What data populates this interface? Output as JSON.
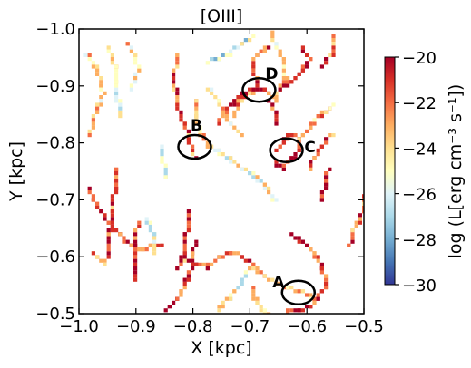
{
  "chart_data": {
    "type": "heatmap",
    "title": "[OIII]",
    "xlabel": "X [kpc]",
    "ylabel": "Y [kpc]",
    "xlim": [
      -1.0,
      -0.5
    ],
    "ylim": [
      -1.0,
      -0.5
    ],
    "xticks": [
      -1.0,
      -0.9,
      -0.8,
      -0.7,
      -0.6,
      -0.5
    ],
    "xtick_labels": [
      "−1.0",
      "−0.9",
      "−0.8",
      "−0.7",
      "−0.6",
      "−0.5"
    ],
    "yticks": [
      -0.5,
      -0.6,
      -0.7,
      -0.8,
      -0.9,
      -1.0
    ],
    "ytick_labels": [
      "−0.5",
      "−0.6",
      "−0.7",
      "−0.8",
      "−0.9",
      "−1.0"
    ],
    "colorbar": {
      "label": "log (L[erg cm⁻³ s⁻¹])",
      "range": [
        -30,
        -20
      ],
      "ticks": [
        -20,
        -22,
        -24,
        -26,
        -28,
        -30
      ],
      "tick_labels": [
        "−20",
        "−22",
        "−24",
        "−26",
        "−28",
        "−30"
      ],
      "colormap": [
        "#313695",
        "#4575b4",
        "#74add1",
        "#abd9e9",
        "#e0f3f8",
        "#ffffbf",
        "#fee090",
        "#fdae61",
        "#f46d43",
        "#d73027",
        "#a50026"
      ]
    },
    "annotations": [
      {
        "label": "A",
        "x": -0.615,
        "y": -0.537
      },
      {
        "label": "B",
        "x": -0.797,
        "y": -0.793
      },
      {
        "label": "C",
        "x": -0.636,
        "y": -0.787
      },
      {
        "label": "D",
        "x": -0.684,
        "y": -0.893
      }
    ],
    "filaments": [
      {
        "pts": [
          [
            -0.99,
            -0.96
          ],
          [
            -0.97,
            -0.93
          ],
          [
            -0.96,
            -0.89
          ],
          [
            -0.975,
            -0.85
          ],
          [
            -0.985,
            -0.82
          ]
        ],
        "v": -24
      },
      {
        "pts": [
          [
            -0.985,
            -0.72
          ],
          [
            -0.97,
            -0.69
          ],
          [
            -0.95,
            -0.66
          ],
          [
            -0.93,
            -0.64
          ],
          [
            -0.91,
            -0.62
          ]
        ],
        "v": -21
      },
      {
        "pts": [
          [
            -0.91,
            -0.62
          ],
          [
            -0.89,
            -0.615
          ],
          [
            -0.87,
            -0.625
          ],
          [
            -0.855,
            -0.62
          ]
        ],
        "v": -22
      },
      {
        "pts": [
          [
            -0.905,
            -0.565
          ],
          [
            -0.905,
            -0.62
          ],
          [
            -0.9,
            -0.66
          ]
        ],
        "v": -21
      },
      {
        "pts": [
          [
            -0.98,
            -0.61
          ],
          [
            -0.97,
            -0.6
          ],
          [
            -0.955,
            -0.59
          ]
        ],
        "v": -23
      },
      {
        "pts": [
          [
            -0.85,
            -0.51
          ],
          [
            -0.83,
            -0.53
          ],
          [
            -0.815,
            -0.56
          ],
          [
            -0.805,
            -0.59
          ],
          [
            -0.8,
            -0.63
          ]
        ],
        "v": -21
      },
      {
        "pts": [
          [
            -0.83,
            -0.58
          ],
          [
            -0.82,
            -0.61
          ],
          [
            -0.815,
            -0.64
          ],
          [
            -0.81,
            -0.68
          ]
        ],
        "v": -20.5
      },
      {
        "pts": [
          [
            -0.82,
            -0.6
          ],
          [
            -0.8,
            -0.59
          ],
          [
            -0.78,
            -0.585
          ],
          [
            -0.76,
            -0.6
          ],
          [
            -0.74,
            -0.61
          ],
          [
            -0.72,
            -0.605
          ],
          [
            -0.7,
            -0.59
          ]
        ],
        "v": -22
      },
      {
        "pts": [
          [
            -0.7,
            -0.59
          ],
          [
            -0.68,
            -0.57
          ],
          [
            -0.655,
            -0.555
          ],
          [
            -0.635,
            -0.55
          ],
          [
            -0.61,
            -0.54
          ],
          [
            -0.59,
            -0.53
          ]
        ],
        "v": -23
      },
      {
        "pts": [
          [
            -0.76,
            -0.51
          ],
          [
            -0.74,
            -0.53
          ],
          [
            -0.72,
            -0.555
          ],
          [
            -0.705,
            -0.58
          ]
        ],
        "v": -25
      },
      {
        "pts": [
          [
            -0.64,
            -0.505
          ],
          [
            -0.62,
            -0.51
          ],
          [
            -0.6,
            -0.515
          ],
          [
            -0.585,
            -0.53
          ],
          [
            -0.57,
            -0.55
          ],
          [
            -0.575,
            -0.58
          ],
          [
            -0.59,
            -0.61
          ],
          [
            -0.61,
            -0.63
          ],
          [
            -0.63,
            -0.64
          ]
        ],
        "v": -21
      },
      {
        "pts": [
          [
            -0.67,
            -0.5
          ],
          [
            -0.69,
            -0.52
          ],
          [
            -0.7,
            -0.55
          ]
        ],
        "v": -24
      },
      {
        "pts": [
          [
            -0.95,
            -0.6
          ],
          [
            -0.95,
            -0.64
          ],
          [
            -0.945,
            -0.68
          ],
          [
            -0.94,
            -0.72
          ],
          [
            -0.935,
            -0.76
          ]
        ],
        "v": -22
      },
      {
        "pts": [
          [
            -0.66,
            -0.7
          ],
          [
            -0.68,
            -0.73
          ],
          [
            -0.7,
            -0.75
          ],
          [
            -0.72,
            -0.76
          ],
          [
            -0.74,
            -0.775
          ],
          [
            -0.76,
            -0.79
          ],
          [
            -0.775,
            -0.8
          ]
        ],
        "v": -25
      },
      {
        "pts": [
          [
            -0.775,
            -0.8
          ],
          [
            -0.79,
            -0.82
          ],
          [
            -0.8,
            -0.85
          ],
          [
            -0.8,
            -0.88
          ]
        ],
        "v": -23
      },
      {
        "pts": [
          [
            -0.8,
            -0.78
          ],
          [
            -0.81,
            -0.81
          ],
          [
            -0.82,
            -0.84
          ],
          [
            -0.83,
            -0.87
          ],
          [
            -0.835,
            -0.9
          ],
          [
            -0.835,
            -0.93
          ],
          [
            -0.83,
            -0.96
          ]
        ],
        "v": -22
      },
      {
        "pts": [
          [
            -0.76,
            -0.84
          ],
          [
            -0.745,
            -0.86
          ],
          [
            -0.73,
            -0.875
          ],
          [
            -0.715,
            -0.89
          ],
          [
            -0.695,
            -0.9
          ],
          [
            -0.675,
            -0.895
          ],
          [
            -0.66,
            -0.88
          ]
        ],
        "v": -21
      },
      {
        "pts": [
          [
            -0.73,
            -0.85
          ],
          [
            -0.72,
            -0.88
          ],
          [
            -0.7,
            -0.89
          ],
          [
            -0.69,
            -0.91
          ],
          [
            -0.7,
            -0.94
          ],
          [
            -0.69,
            -0.96
          ],
          [
            -0.67,
            -0.97
          ]
        ],
        "v": -22
      },
      {
        "pts": [
          [
            -0.66,
            -0.88
          ],
          [
            -0.65,
            -0.9
          ],
          [
            -0.64,
            -0.92
          ],
          [
            -0.645,
            -0.95
          ],
          [
            -0.655,
            -0.97
          ],
          [
            -0.665,
            -0.995
          ]
        ],
        "v": -24
      },
      {
        "pts": [
          [
            -0.65,
            -0.9
          ],
          [
            -0.63,
            -0.91
          ],
          [
            -0.61,
            -0.93
          ],
          [
            -0.6,
            -0.95
          ],
          [
            -0.61,
            -0.97
          ]
        ],
        "v": -21
      },
      {
        "pts": [
          [
            -0.66,
            -0.77
          ],
          [
            -0.645,
            -0.76
          ],
          [
            -0.63,
            -0.775
          ],
          [
            -0.62,
            -0.79
          ],
          [
            -0.615,
            -0.81
          ],
          [
            -0.63,
            -0.82
          ],
          [
            -0.645,
            -0.805
          ],
          [
            -0.655,
            -0.79
          ]
        ],
        "v": -20.5
      },
      {
        "pts": [
          [
            -0.615,
            -0.81
          ],
          [
            -0.6,
            -0.83
          ],
          [
            -0.585,
            -0.85
          ],
          [
            -0.57,
            -0.86
          ],
          [
            -0.56,
            -0.87
          ]
        ],
        "v": -23
      },
      {
        "pts": [
          [
            -0.6,
            -0.76
          ],
          [
            -0.59,
            -0.78
          ],
          [
            -0.575,
            -0.8
          ],
          [
            -0.56,
            -0.82
          ]
        ],
        "v": -22
      },
      {
        "pts": [
          [
            -0.66,
            -0.84
          ],
          [
            -0.66,
            -0.86
          ],
          [
            -0.67,
            -0.88
          ]
        ],
        "v": -21
      },
      {
        "pts": [
          [
            -0.72,
            -0.82
          ],
          [
            -0.735,
            -0.835
          ],
          [
            -0.75,
            -0.86
          ],
          [
            -0.76,
            -0.88
          ],
          [
            -0.775,
            -0.9
          ]
        ],
        "v": -24
      },
      {
        "pts": [
          [
            -0.93,
            -0.85
          ],
          [
            -0.935,
            -0.88
          ],
          [
            -0.935,
            -0.91
          ],
          [
            -0.94,
            -0.94
          ],
          [
            -0.95,
            -0.97
          ]
        ],
        "v": -25
      },
      {
        "pts": [
          [
            -0.91,
            -0.9
          ],
          [
            -0.9,
            -0.93
          ],
          [
            -0.905,
            -0.96
          ],
          [
            -0.92,
            -0.98
          ]
        ],
        "v": -24
      },
      {
        "pts": [
          [
            -0.7,
            -0.99
          ],
          [
            -0.72,
            -0.975
          ],
          [
            -0.74,
            -0.96
          ],
          [
            -0.76,
            -0.95
          ],
          [
            -0.78,
            -0.945
          ]
        ],
        "v": -26
      },
      {
        "pts": [
          [
            -0.58,
            -0.7
          ],
          [
            -0.57,
            -0.73
          ],
          [
            -0.565,
            -0.76
          ]
        ],
        "v": -21
      },
      {
        "pts": [
          [
            -0.53,
            -0.62
          ],
          [
            -0.52,
            -0.65
          ],
          [
            -0.505,
            -0.68
          ],
          [
            -0.5,
            -0.71
          ]
        ],
        "v": -22
      },
      {
        "pts": [
          [
            -0.555,
            -0.99
          ],
          [
            -0.56,
            -0.96
          ],
          [
            -0.575,
            -0.94
          ]
        ],
        "v": -22
      },
      {
        "pts": [
          [
            -0.87,
            -0.61
          ],
          [
            -0.87,
            -0.64
          ],
          [
            -0.885,
            -0.67
          ]
        ],
        "v": -25
      },
      {
        "pts": [
          [
            -0.85,
            -0.74
          ],
          [
            -0.855,
            -0.77
          ],
          [
            -0.86,
            -0.8
          ]
        ],
        "v": -26
      }
    ]
  }
}
